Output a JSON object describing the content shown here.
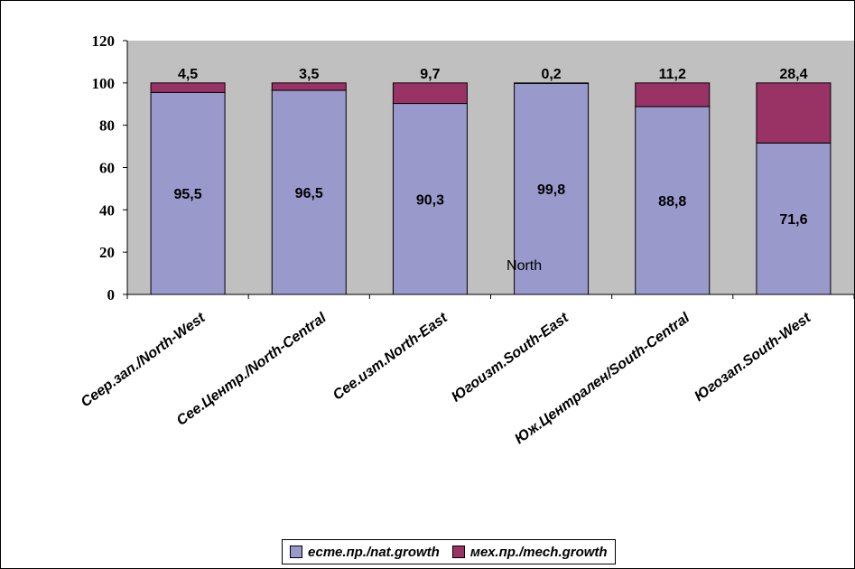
{
  "chart_data": {
    "type": "bar",
    "stacked": true,
    "categories": [
      "Сеeр.зап./North-West",
      "Сее.Центр./North-Central",
      "Сее.изт.North-East",
      "Югоизт.South-East",
      "Юж.Централен/South-Central",
      "Югозап.South-West"
    ],
    "series": [
      {
        "name": "есте.пр./nat.growth",
        "values": [
          95.5,
          96.5,
          90.3,
          99.8,
          88.8,
          71.6
        ],
        "labels": [
          "95,5",
          "96,5",
          "90,3",
          "99,8",
          "88,8",
          "71,6"
        ],
        "color": "#9999cc"
      },
      {
        "name": "мех.пр./mech.growth",
        "values": [
          4.5,
          3.5,
          9.7,
          0.2,
          11.2,
          28.4
        ],
        "labels": [
          "4,5",
          "3,5",
          "9,7",
          "0,2",
          "11,2",
          "28,4"
        ],
        "color": "#993366"
      }
    ],
    "ylim": [
      0,
      120
    ],
    "yticks": [
      0,
      20,
      40,
      60,
      80,
      100,
      120
    ],
    "plot_background": "#c0c0c0",
    "grid": false,
    "legend": "bottom",
    "annotations": [
      {
        "text": "North",
        "x_category": 3,
        "y": 14
      }
    ]
  }
}
